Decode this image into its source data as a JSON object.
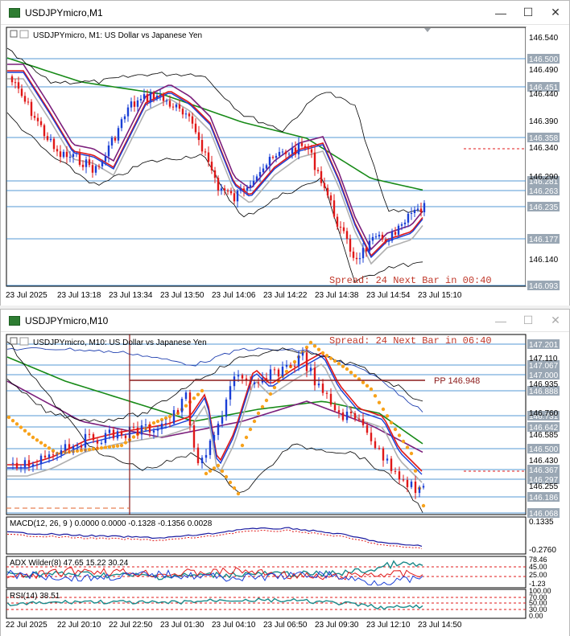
{
  "window1": {
    "title": "USDJPYmicro,M1",
    "chart_label": "USDJPYmicro, M1:  US Dollar vs Japanese Yen",
    "spread_text": "Spread: 24  Next Bar in 00:40",
    "price_axis": [
      "146.540",
      "146.490",
      "146.440",
      "146.390",
      "146.340",
      "146.290",
      "146.140"
    ],
    "price_tags": [
      "146.500",
      "146.451",
      "146.358",
      "146.281",
      "146.263",
      "146.235",
      "146.177",
      "146.093"
    ],
    "time_axis": [
      "23 Jul 2025",
      "23 Jul 13:18",
      "23 Jul 13:34",
      "23 Jul 13:50",
      "23 Jul 14:06",
      "23 Jul 14:22",
      "23 Jul 14:38",
      "23 Jul 14:54",
      "23 Jul 15:10"
    ]
  },
  "window2": {
    "title": "USDJPYmicro,M10",
    "chart_label": "USDJPYmicro, M10:  US Dollar vs Japanese Yen",
    "spread_text": "Spread: 24  Next Bar in 06:40",
    "pivot_label": "PP 146.948",
    "price_axis": [
      "147.110",
      "146.935",
      "146.760",
      "146.585",
      "146.430",
      "146.255"
    ],
    "price_tags": [
      "147.201",
      "147.067",
      "147.000",
      "146.888",
      "146.731",
      "146.642",
      "146.500",
      "146.367",
      "146.297",
      "146.186",
      "146.068"
    ],
    "macd_label": "MACD(12, 26, 9 ) 0.0000 0.0000 -0.1328 -0.1356 0.0028",
    "macd_axis": [
      "0.1335",
      "-0.2760"
    ],
    "adx_label": "ADX Wilder(8) 47.65 15.22 30.24",
    "adx_axis": [
      "78.46",
      "45.00",
      "25.00",
      "-1.23"
    ],
    "rsi_label": "RSI(14) 38.51",
    "rsi_axis": [
      "100.00",
      "70.00",
      "50.00",
      "30.00",
      "0.00"
    ],
    "time_axis": [
      "22 Jul 2025",
      "22 Jul 20:10",
      "22 Jul 22:50",
      "23 Jul 01:30",
      "23 Jul 04:10",
      "23 Jul 06:50",
      "23 Jul 09:30",
      "23 Jul 12:10",
      "23 Jul 14:50"
    ]
  },
  "colors": {
    "bull": "#1a3fd6",
    "bear": "#e01818",
    "ma_green": "#178a17",
    "ma_purple": "#7b1e7b",
    "ma_red": "#e01818",
    "ma_gray": "#b0b0b0",
    "band": "#000000",
    "level": "#1e78c8",
    "sar": "#f7a21b",
    "spread_text": "#c0392b"
  }
}
